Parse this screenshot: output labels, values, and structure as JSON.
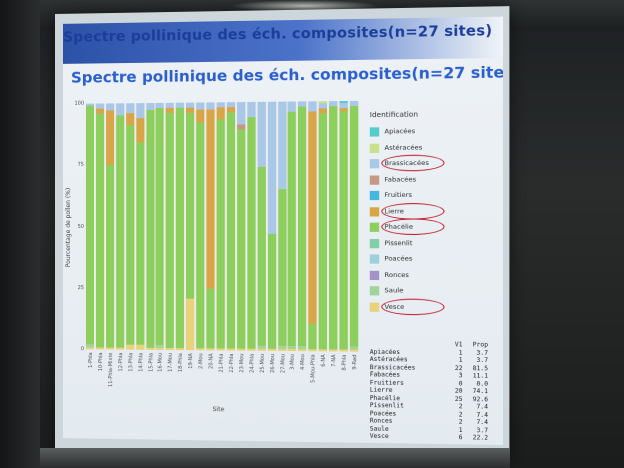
{
  "slide": {
    "header": "Spectre pollinique des éch. composites(n=27 sites)",
    "title": "Spectre pollinique des éch. composites(n=27 sites)"
  },
  "chart_data": {
    "type": "bar",
    "stacked": true,
    "xlabel": "Site",
    "ylabel": "Pourcentage de pollen (%)",
    "ylim": [
      0,
      100
    ],
    "yticks": [
      "0",
      "25",
      "50",
      "75",
      "100"
    ],
    "categories": [
      "1-Phla",
      "10-Phla",
      "11-Phla-Mixte",
      "12-Phla",
      "13-Phla",
      "14-Phla",
      "15-Phla",
      "16-Mou",
      "17-Mou",
      "18-Phla",
      "19-NA",
      "2-Mou",
      "20-NA",
      "21-Phla",
      "22-Phla",
      "23-Mou",
      "24-Phla",
      "25-Mou",
      "26-Mou",
      "27-Mou",
      "3-Mou",
      "4-Mou",
      "5-Mou-Phla",
      "6-NA",
      "7-NA",
      "8-Phla",
      "9-Rad"
    ],
    "series": [
      {
        "name": "Apiacées",
        "color": "#55cccc",
        "values": [
          0,
          0,
          0,
          0,
          0,
          0,
          0,
          0,
          0,
          0,
          0,
          0,
          0,
          0,
          0,
          0,
          0,
          0,
          0,
          0,
          0,
          0,
          0,
          0,
          0,
          1,
          0
        ]
      },
      {
        "name": "Astéracées",
        "color": "#c9e28a",
        "values": [
          0,
          0,
          0,
          0,
          0,
          0,
          0,
          0,
          0,
          0,
          0,
          0,
          0,
          0,
          0,
          0,
          0,
          0,
          0,
          0,
          0,
          0,
          0,
          1,
          0,
          0,
          0
        ]
      },
      {
        "name": "Brassicacées",
        "color": "#a9c8e8",
        "values": [
          1,
          2,
          3,
          5,
          4,
          6,
          3,
          2,
          2,
          2,
          2,
          3,
          3,
          2,
          2,
          9,
          6,
          26,
          53,
          35,
          4,
          2,
          4,
          2,
          2,
          2,
          2
        ]
      },
      {
        "name": "Fabacées",
        "color": "#c49a84",
        "values": [
          0,
          0,
          0,
          0,
          0,
          0,
          0,
          0,
          0,
          0,
          0,
          0,
          0,
          0,
          0,
          2,
          0,
          0,
          0,
          0,
          0,
          0,
          0,
          0,
          0,
          0,
          0
        ]
      },
      {
        "name": "Fruitiers",
        "color": "#44b8e0",
        "values": [
          0,
          0,
          0,
          0,
          0,
          0,
          0,
          0,
          0,
          0,
          0,
          0,
          0,
          0,
          0,
          0,
          0,
          0,
          0,
          0,
          0,
          0,
          0,
          0,
          0,
          0,
          0
        ]
      },
      {
        "name": "Lierre",
        "color": "#d8a646",
        "values": [
          0,
          2,
          22,
          0,
          5,
          10,
          0,
          0,
          2,
          0,
          2,
          5,
          72,
          5,
          2,
          0,
          0,
          0,
          0,
          0,
          0,
          0,
          85,
          2,
          0,
          1,
          0
        ]
      },
      {
        "name": "Phacélie",
        "color": "#8ccf5c",
        "values": [
          97,
          95,
          74,
          94,
          89,
          82,
          96,
          96,
          95,
          97,
          75,
          91,
          24,
          92,
          95,
          88,
          93,
          72,
          46,
          63,
          94,
          96,
          10,
          94,
          97,
          95,
          96
        ]
      },
      {
        "name": "Pissenlit",
        "color": "#7fcfa8",
        "values": [
          0,
          0,
          0,
          0,
          0,
          0,
          0,
          0,
          0,
          0,
          0,
          0,
          0,
          0,
          0,
          0,
          0,
          0,
          0,
          0,
          0,
          0,
          0,
          0,
          0,
          0,
          0
        ]
      },
      {
        "name": "Poacées",
        "color": "#9ed0dc",
        "values": [
          0,
          0,
          0,
          0,
          0,
          0,
          0,
          0,
          0,
          0,
          0,
          0,
          0,
          0,
          0,
          0,
          0,
          0,
          0,
          0,
          0,
          0,
          0,
          0,
          0,
          0,
          0
        ]
      },
      {
        "name": "Ronces",
        "color": "#a493c8",
        "values": [
          0,
          0,
          0,
          0,
          0,
          0,
          0,
          0,
          0,
          0,
          0,
          0,
          0,
          0,
          0,
          0,
          0,
          0,
          0,
          0,
          0,
          0,
          0,
          0,
          0,
          0,
          0
        ]
      },
      {
        "name": "Saule",
        "color": "#a0d49a",
        "values": [
          1,
          0,
          0,
          0,
          0,
          0,
          0,
          1,
          0,
          0,
          0,
          0,
          0,
          0,
          0,
          0,
          0,
          1,
          0,
          1,
          1,
          1,
          0,
          0,
          0,
          0,
          1
        ]
      },
      {
        "name": "Vesce",
        "color": "#e8d27a",
        "values": [
          1,
          1,
          1,
          1,
          2,
          2,
          1,
          1,
          1,
          1,
          21,
          1,
          1,
          1,
          1,
          1,
          1,
          1,
          1,
          1,
          1,
          1,
          1,
          1,
          1,
          1,
          1
        ]
      }
    ],
    "legend": {
      "title": "Identification",
      "placement": "right",
      "circled": [
        "Brassicacées",
        "Lierre",
        "Phacélie",
        "Vesce"
      ]
    },
    "grid": true
  },
  "table": {
    "headers": [
      "",
      "V1",
      "Prop"
    ],
    "rows": [
      [
        "Apiacées",
        "1",
        "3.7"
      ],
      [
        "Astéracées",
        "1",
        "3.7"
      ],
      [
        "Brassicacées",
        "22",
        "81.5"
      ],
      [
        "Fabacées",
        "3",
        "11.1"
      ],
      [
        "Fruitiers",
        "0",
        "0.0"
      ],
      [
        "Lierre",
        "20",
        "74.1"
      ],
      [
        "Phacélie",
        "25",
        "92.6"
      ],
      [
        "Pissenlit",
        "2",
        "7.4"
      ],
      [
        "Poacées",
        "2",
        "7.4"
      ],
      [
        "Ronces",
        "2",
        "7.4"
      ],
      [
        "Saule",
        "1",
        "3.7"
      ],
      [
        "Vesce",
        "6",
        "22.2"
      ]
    ]
  }
}
